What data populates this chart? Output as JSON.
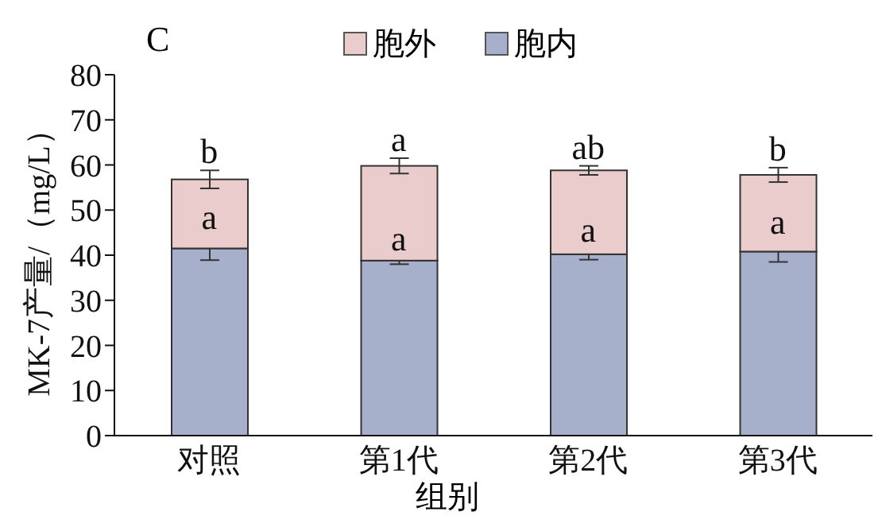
{
  "chart_data": {
    "type": "bar",
    "title": "C",
    "xlabel": "组别",
    "ylabel": "MK-7产量/（mg/L）",
    "categories": [
      "对照",
      "第1代",
      "第2代",
      "第3代"
    ],
    "stacked": true,
    "series": [
      {
        "name": "胞内",
        "color": "#a7b0cb",
        "values": [
          41.5,
          38.8,
          40.2,
          40.8
        ],
        "errors": [
          2.6,
          0.8,
          1.2,
          2.3
        ]
      },
      {
        "name": "胞外",
        "color": "#ebcccd",
        "values": [
          15.3,
          21.0,
          18.6,
          17.0
        ],
        "errors": [
          2.0,
          1.7,
          1.0,
          1.6
        ]
      }
    ],
    "ylim": [
      0,
      80
    ],
    "yticks": [
      0,
      10,
      20,
      30,
      40,
      50,
      60,
      70,
      80
    ],
    "grid": false,
    "legend": "top",
    "annotations": [
      {
        "text": "a",
        "x": "对照",
        "y": 41.5
      },
      {
        "text": "a",
        "x": "第1代",
        "y": 38.8
      },
      {
        "text": "a",
        "x": "第2代",
        "y": 40.2
      },
      {
        "text": "a",
        "x": "第3代",
        "y": 40.8
      },
      {
        "text": "b",
        "x": "对照",
        "y": 56.8
      },
      {
        "text": "a",
        "x": "第1代",
        "y": 59.8
      },
      {
        "text": "ab",
        "x": "第2代",
        "y": 58.8
      },
      {
        "text": "b",
        "x": "第3代",
        "y": 57.8
      }
    ]
  }
}
